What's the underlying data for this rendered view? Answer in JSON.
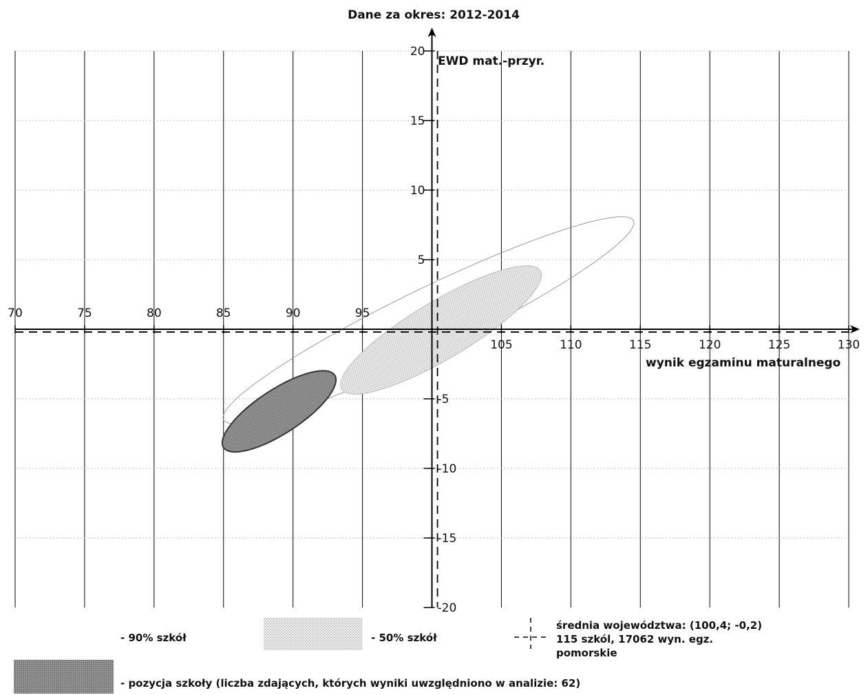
{
  "chart_data": {
    "type": "scatter",
    "title": "Dane za okres: 2012-2014",
    "xlabel": "wynik egzaminu maturalnego",
    "ylabel": "EWD mat.-przyr.",
    "xlim": [
      70,
      130
    ],
    "ylim": [
      -20,
      20
    ],
    "x_ticks": [
      "70",
      "75",
      "80",
      "85",
      "90",
      "95",
      "105",
      "110",
      "115",
      "120",
      "125",
      "130"
    ],
    "y_ticks": [
      "20",
      "15",
      "10",
      "5",
      "-5",
      "-10",
      "-15",
      "-20"
    ],
    "grid": true,
    "ellipses": [
      {
        "name": "90% szkół",
        "cx": 100.4,
        "cy": -0.2,
        "points": [
          [
            85,
            -6.5
          ],
          [
            114.5,
            7.8
          ]
        ],
        "fill": "none",
        "stroke": "#9a9a9a"
      },
      {
        "name": "50% szkół",
        "cx": 100.4,
        "cy": -0.2,
        "points": [
          [
            93.5,
            -4.3
          ],
          [
            107.8,
            4.2
          ]
        ],
        "fill": "#dcdcdc",
        "stroke": "#bbbbbb"
      },
      {
        "name": "pozycja szkoły",
        "cx": 88.5,
        "cy": -5.8,
        "points": [
          [
            85,
            -8.5
          ],
          [
            93,
            -3.3
          ]
        ],
        "fill": "#8c8c8c",
        "stroke": "#333333"
      }
    ],
    "mean": {
      "x": 100.4,
      "y": -0.2
    }
  },
  "legend": {
    "ninety": "- 90% szkół",
    "fifty": "- 50% szkół",
    "mean_line1": "średnia województwa: (100,4; -0,2)",
    "mean_line2": "115 szkól, 17062 wyn. egz.",
    "mean_line3": "pomorskie",
    "school": "- pozycja szkoły (liczba zdających, których wyniki uwzględniono w analizie: 62)"
  },
  "colors": {
    "grid": "#000000",
    "fifty_fill": "#dcdcdc",
    "school_fill": "#8c8c8c"
  }
}
